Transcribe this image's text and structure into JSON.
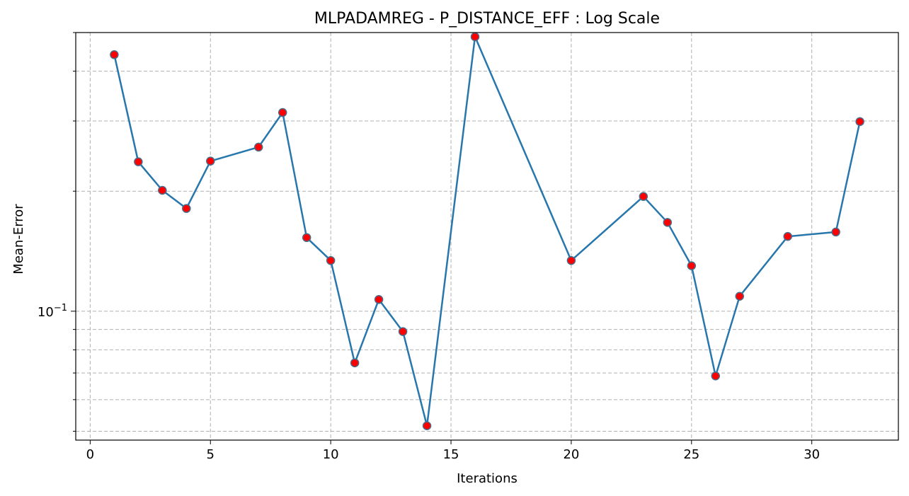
{
  "chart_data": {
    "type": "line",
    "title": "MLPADAMREG - P_DISTANCE_EFF : Log Scale",
    "xlabel": "Iterations",
    "ylabel": "Mean-Error",
    "yscale": "log",
    "xlim": [
      -0.6,
      33.6
    ],
    "ylim": [
      0.0475,
      0.5
    ],
    "grid": true,
    "x_ticks": [
      0,
      5,
      10,
      15,
      20,
      25,
      30
    ],
    "x_tick_labels": [
      "0",
      "5",
      "10",
      "15",
      "20",
      "25",
      "30"
    ],
    "y_major_ticks": [
      0.1
    ],
    "y_major_tick_labels": [
      "10^{-1}"
    ],
    "y_minor_ticks": [
      0.05,
      0.06,
      0.07,
      0.08,
      0.09,
      0.2,
      0.3,
      0.4,
      0.5
    ],
    "line_color": "#2776ac",
    "marker_face_color": "#ff0000",
    "marker_edge_color": "#4a6b8a",
    "series": [
      {
        "x": [
          1,
          2,
          3,
          4,
          5,
          7,
          8,
          9,
          10,
          11,
          12,
          13,
          14,
          16,
          20,
          23,
          24,
          25,
          26,
          27,
          29,
          31,
          32
        ],
        "y": [
          0.44,
          0.237,
          0.201,
          0.181,
          0.238,
          0.258,
          0.315,
          0.153,
          0.134,
          0.0742,
          0.107,
          0.0889,
          0.0516,
          0.488,
          0.134,
          0.194,
          0.167,
          0.13,
          0.0688,
          0.109,
          0.154,
          0.158,
          0.299
        ]
      }
    ]
  }
}
